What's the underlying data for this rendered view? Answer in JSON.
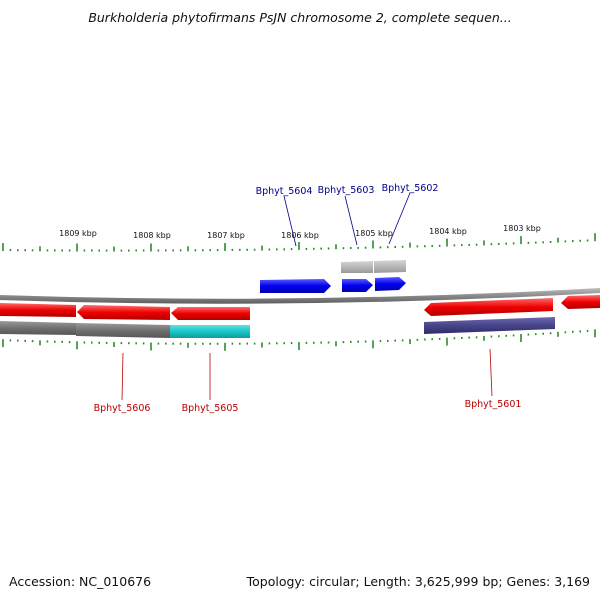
{
  "title": "Burkholderia phytofirmans PsJN chromosome 2, complete sequen...",
  "accession": "Accession: NC_010676",
  "summary": "Topology: circular; Length: 3,625,999 bp; Genes: 3,169",
  "colors": {
    "background": "#ffffff",
    "backbone": "#8a8a8a",
    "ticks": "#2e8b2e",
    "forward_gene": "#0000ee",
    "reverse_gene": "#ee0000",
    "feature_grey": "#7a7a7a",
    "feature_light_grey": "#b8b8b8",
    "feature_cyan": "#19c6c6",
    "feature_purple": "#47448a",
    "label_forward": "#00008b",
    "label_reverse": "#b80000"
  },
  "ticks": {
    "labels": [
      "1809 kbp",
      "1808 kbp",
      "1807 kbp",
      "1806 kbp",
      "1805 kbp",
      "1804 kbp",
      "1803 kbp"
    ]
  },
  "genes": {
    "forward": [
      "Bphyt_5604",
      "Bphyt_5603",
      "Bphyt_5602"
    ],
    "reverse": [
      "Bphyt_5606",
      "Bphyt_5605",
      "Bphyt_5601"
    ]
  }
}
